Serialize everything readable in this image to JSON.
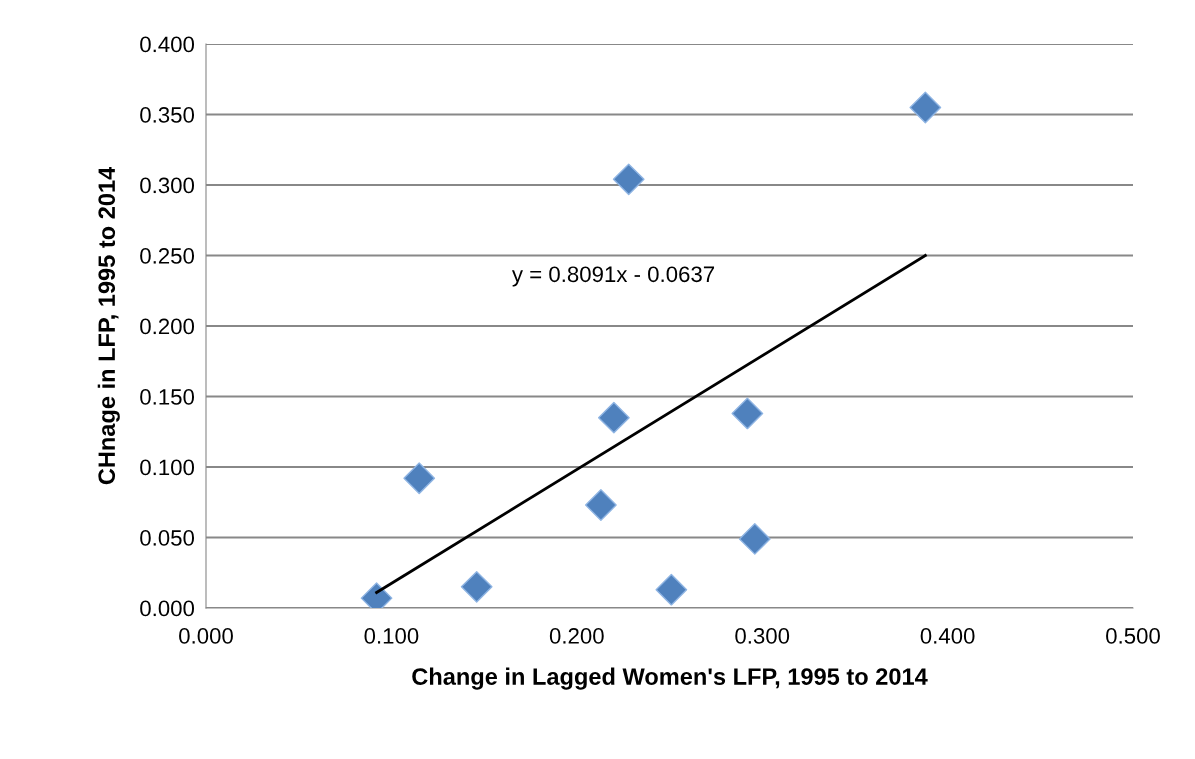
{
  "chart_data": {
    "type": "scatter",
    "xlabel": "Change in Lagged Women's LFP, 1995 to 2014",
    "ylabel": "CHnage in LFP, 1995 to 2014",
    "series": [
      {
        "color": "#4f81bd",
        "marker": "diamond",
        "x": [
          0.092,
          0.115,
          0.146,
          0.213,
          0.22,
          0.228,
          0.251,
          0.292,
          0.296,
          0.388
        ],
        "values": [
          0.007,
          0.092,
          0.015,
          0.073,
          0.135,
          0.304,
          0.013,
          0.138,
          0.049,
          0.355
        ]
      },
      {
        "type": "line",
        "color": "#000000",
        "marker": "none",
        "line_style": "solid",
        "x": [
          0.092,
          0.388
        ],
        "values": [
          0.011,
          0.25
        ]
      }
    ],
    "annotations": [
      "y = 0.8091x - 0.0637"
    ],
    "xlim": [
      0,
      0.5
    ],
    "ylim": [
      0,
      0.4
    ],
    "xticks": [
      {
        "value": 0,
        "label": "0.000"
      },
      {
        "value": 0.1,
        "label": "0.100"
      },
      {
        "value": 0.2,
        "label": "0.200"
      },
      {
        "value": 0.3,
        "label": "0.300"
      },
      {
        "value": 0.4,
        "label": "0.400"
      },
      {
        "value": 0.5,
        "label": "0.500"
      }
    ],
    "yticks": [
      {
        "value": 0,
        "label": "0.000"
      },
      {
        "value": 0.05,
        "label": "0.050"
      },
      {
        "value": 0.1,
        "label": "0.100"
      },
      {
        "value": 0.15,
        "label": "0.150"
      },
      {
        "value": 0.2,
        "label": "0.200"
      },
      {
        "value": 0.25,
        "label": "0.250"
      },
      {
        "value": 0.3,
        "label": "0.300"
      },
      {
        "value": 0.35,
        "label": "0.350"
      },
      {
        "value": 0.4,
        "label": "0.400"
      }
    ],
    "grid": "y"
  }
}
